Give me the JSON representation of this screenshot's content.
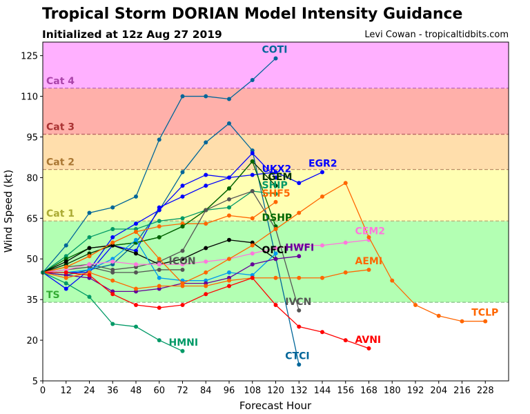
{
  "chart_data": {
    "type": "line",
    "title": "Tropical Storm DORIAN Model Intensity Guidance",
    "subtitle": "Initialized at 12z Aug 27 2019",
    "credit": "Levi Cowan - tropicaltidbits.com",
    "xlabel": "Forecast Hour",
    "ylabel": "Wind Speed (kt)",
    "xlim": [
      0,
      240
    ],
    "ylim": [
      5,
      130
    ],
    "xticks": [
      0,
      12,
      24,
      36,
      48,
      60,
      72,
      84,
      96,
      108,
      120,
      132,
      144,
      156,
      168,
      180,
      192,
      204,
      216,
      228
    ],
    "yticks": [
      5,
      20,
      35,
      50,
      65,
      80,
      95,
      110,
      125
    ],
    "grid": false,
    "bands": [
      {
        "label": "TS",
        "from": 34,
        "to": 64,
        "color": "#b3ffb3",
        "label_color": "#33aa33",
        "line_color": "#88bb88"
      },
      {
        "label": "Cat 1",
        "from": 64,
        "to": 83,
        "color": "#ffffb3",
        "label_color": "#aaaa33",
        "line_color": "#bbaa77"
      },
      {
        "label": "Cat 2",
        "from": 83,
        "to": 96,
        "color": "#ffdeac",
        "label_color": "#aa7733",
        "line_color": "#bb8866"
      },
      {
        "label": "Cat 3",
        "from": 96,
        "to": 113,
        "color": "#ffb0aa",
        "label_color": "#aa3333",
        "line_color": "#bb6666"
      },
      {
        "label": "Cat 4",
        "from": 113,
        "to": 130,
        "color": "#ffb0ff",
        "label_color": "#aa44aa",
        "line_color": "#bb66bb"
      }
    ],
    "series": [
      {
        "name": "COTI",
        "color": "#006699",
        "x": [
          0,
          12,
          24,
          36,
          48,
          60,
          72,
          84,
          96,
          108,
          120
        ],
        "y": [
          45,
          55,
          67,
          69,
          73,
          94,
          110,
          110,
          109,
          116,
          124
        ]
      },
      {
        "name": "CTCI",
        "color": "#006699",
        "x": [
          0,
          12,
          24,
          36,
          48,
          60,
          72,
          84,
          96,
          108,
          132
        ],
        "y": [
          45,
          44,
          46,
          48,
          56,
          68,
          82,
          93,
          100,
          90,
          11
        ]
      },
      {
        "name": "EGR2",
        "color": "#0000ff",
        "x": [
          0,
          12,
          24,
          36,
          48,
          60,
          72,
          84,
          96,
          108,
          120,
          132,
          144
        ],
        "y": [
          45,
          39,
          46,
          58,
          63,
          68,
          77,
          81,
          80,
          81,
          82,
          78,
          82
        ]
      },
      {
        "name": "UKX2",
        "color": "#0000ff",
        "x": [
          0,
          12,
          24,
          36,
          48,
          60,
          72,
          84,
          96,
          108,
          120
        ],
        "y": [
          45,
          45,
          45,
          55,
          53,
          69,
          73,
          77,
          80,
          89,
          80
        ]
      },
      {
        "name": "LGEM",
        "color": "#003300",
        "x": [
          0,
          12,
          24,
          36,
          48,
          60,
          72,
          84,
          96,
          108,
          120
        ],
        "y": [
          45,
          48,
          52,
          55,
          56,
          58,
          62,
          68,
          76,
          86,
          77
        ]
      },
      {
        "name": "SHIP",
        "color": "#009966",
        "x": [
          0,
          12,
          24,
          36,
          48,
          60,
          72,
          84,
          96,
          108,
          120
        ],
        "y": [
          45,
          51,
          58,
          61,
          61,
          64,
          65,
          68,
          69,
          75,
          74
        ]
      },
      {
        "name": "SHF5",
        "color": "#ff6600",
        "x": [
          0,
          12,
          24,
          36,
          48,
          60,
          72,
          84,
          96,
          108,
          120
        ],
        "y": [
          45,
          47,
          51,
          56,
          60,
          62,
          63,
          63,
          66,
          65,
          71
        ]
      },
      {
        "name": "DSHP",
        "color": "#006600",
        "x": [
          0,
          12,
          24,
          36,
          48,
          60,
          72,
          84,
          96,
          108,
          120
        ],
        "y": [
          45,
          50,
          54,
          55,
          56,
          58,
          62,
          68,
          76,
          86,
          62
        ]
      },
      {
        "name": "IVCN",
        "color": "#555555",
        "x": [
          0,
          12,
          24,
          36,
          48,
          60,
          72,
          84,
          96,
          108,
          120,
          132
        ],
        "y": [
          45,
          47,
          48,
          46,
          47,
          49,
          53,
          68,
          72,
          75,
          61,
          31
        ]
      },
      {
        "name": "ICON",
        "color": "#555555",
        "x": [
          0,
          12,
          24,
          36,
          48,
          60,
          72
        ],
        "y": [
          45,
          46,
          47,
          45,
          45,
          46,
          46
        ]
      },
      {
        "name": "OFCI",
        "color": "#000000",
        "x": [
          0,
          12,
          24,
          36,
          48,
          60,
          72,
          84,
          96,
          108,
          120
        ],
        "y": [
          45,
          49,
          54,
          55,
          52,
          48,
          50,
          54,
          57,
          56,
          50
        ]
      },
      {
        "name": "",
        "color": "#0099ee",
        "x": [
          0,
          12,
          24,
          36,
          48,
          60,
          72,
          84,
          96,
          108,
          120
        ],
        "y": [
          45,
          45,
          46,
          50,
          57,
          43,
          42,
          42,
          45,
          44,
          52
        ]
      },
      {
        "name": "HWFI",
        "color": "#660099",
        "x": [
          0,
          12,
          24,
          36,
          48,
          60,
          72,
          84,
          96,
          108,
          120,
          132
        ],
        "y": [
          45,
          44,
          43,
          38,
          38,
          39,
          41,
          41,
          43,
          48,
          50,
          51
        ]
      },
      {
        "name": "CEM2",
        "color": "#ff77dd",
        "x": [
          0,
          12,
          24,
          36,
          48,
          60,
          72,
          84,
          96,
          108,
          120,
          132,
          144,
          156,
          168
        ],
        "y": [
          45,
          46,
          48,
          49,
          48,
          48,
          48,
          49,
          50,
          52,
          54,
          55,
          55,
          56,
          57
        ]
      },
      {
        "name": "AEMI",
        "color": "#ff6600",
        "x": [
          0,
          12,
          24,
          36,
          48,
          60,
          72,
          84,
          96,
          108,
          120,
          132,
          144,
          156,
          168
        ],
        "y": [
          45,
          43,
          45,
          42,
          39,
          40,
          40,
          40,
          42,
          43,
          43,
          43,
          43,
          45,
          46
        ]
      },
      {
        "name": "TCLP",
        "color": "#ff6600",
        "x": [
          0,
          12,
          24,
          36,
          48,
          60,
          72,
          84,
          96,
          108,
          120,
          132,
          144,
          156,
          168,
          180,
          192,
          204,
          216,
          228
        ],
        "y": [
          45,
          47,
          51,
          56,
          60,
          50,
          41,
          45,
          50,
          55,
          61,
          67,
          73,
          78,
          58,
          42,
          33,
          29,
          27,
          27
        ]
      },
      {
        "name": "AVNI",
        "color": "#ff0000",
        "x": [
          0,
          12,
          24,
          36,
          48,
          60,
          72,
          84,
          96,
          108,
          120,
          132,
          144,
          156,
          168
        ],
        "y": [
          45,
          45,
          44,
          37,
          33,
          32,
          33,
          37,
          40,
          43,
          33,
          25,
          23,
          20,
          17
        ]
      },
      {
        "name": "HMNI",
        "color": "#009966",
        "x": [
          0,
          12,
          24,
          36,
          48,
          60,
          72
        ],
        "y": [
          45,
          41,
          36,
          26,
          25,
          20,
          16
        ]
      }
    ]
  }
}
